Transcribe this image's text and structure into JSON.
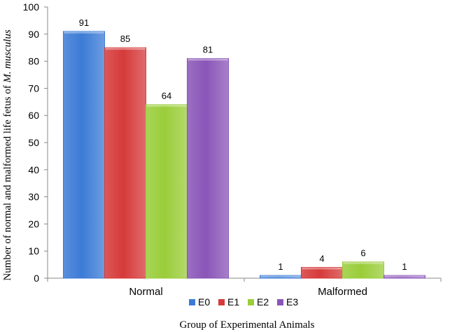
{
  "chart_data": {
    "type": "bar",
    "categories": [
      "Normal",
      "Malformed"
    ],
    "series": [
      {
        "name": "E0",
        "values": [
          91,
          1
        ],
        "color": "#3c7bd6"
      },
      {
        "name": "E1",
        "values": [
          85,
          4
        ],
        "color": "#d63a3a"
      },
      {
        "name": "E2",
        "values": [
          64,
          6
        ],
        "color": "#9acd3a"
      },
      {
        "name": "E3",
        "values": [
          81,
          1
        ],
        "color": "#8a55b8"
      }
    ],
    "xlabel": "Group of Experimental Animals",
    "ylabel_prefix": "Number of normal and malformed life fetus of ",
    "ylabel_species": "M. musculus",
    "ylim": [
      0,
      100
    ],
    "yticks": [
      0,
      10,
      20,
      30,
      40,
      50,
      60,
      70,
      80,
      90,
      100
    ],
    "grid": false,
    "legend_position": "bottom",
    "data_labels": true
  }
}
